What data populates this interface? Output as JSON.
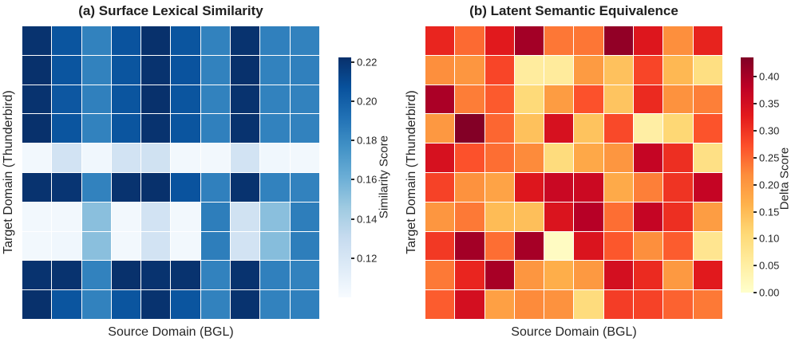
{
  "figure": {
    "background": "#ffffff",
    "title_color": "#1f1f1f",
    "label_color": "#262626",
    "grid_line_color": "#ffffff"
  },
  "chart_data": [
    {
      "type": "heatmap",
      "panel": "a",
      "title": "(a) Surface Lexical Similarity",
      "xlabel": "Source Domain (BGL)",
      "ylabel": "Target Domain (Thunderbird)",
      "colorbar_label": "Similarity Score",
      "colorbar_ticks": [
        0.22,
        0.2,
        0.18,
        0.16,
        0.14,
        0.12
      ],
      "vmin": 0.1,
      "vmax": 0.2224,
      "colormap": "Blues",
      "colormap_stops": [
        "#f7fbff",
        "#deebf7",
        "#c6dbef",
        "#9ecae1",
        "#6baed6",
        "#4292c6",
        "#2171b5",
        "#08519c",
        "#08306b"
      ],
      "rows": 10,
      "cols": 10,
      "x_tick_labels": [],
      "y_tick_labels": [],
      "values": [
        [
          0.221,
          0.205,
          0.184,
          0.206,
          0.222,
          0.205,
          0.184,
          0.221,
          0.185,
          0.184
        ],
        [
          0.222,
          0.205,
          0.184,
          0.205,
          0.221,
          0.206,
          0.184,
          0.222,
          0.184,
          0.185
        ],
        [
          0.221,
          0.204,
          0.185,
          0.205,
          0.222,
          0.205,
          0.184,
          0.221,
          0.184,
          0.184
        ],
        [
          0.222,
          0.205,
          0.184,
          0.205,
          0.221,
          0.205,
          0.185,
          0.221,
          0.184,
          0.184
        ],
        [
          0.103,
          0.123,
          0.104,
          0.123,
          0.124,
          0.103,
          0.103,
          0.123,
          0.104,
          0.103
        ],
        [
          0.221,
          0.22,
          0.184,
          0.221,
          0.222,
          0.206,
          0.185,
          0.221,
          0.184,
          0.184
        ],
        [
          0.103,
          0.103,
          0.152,
          0.103,
          0.123,
          0.103,
          0.186,
          0.124,
          0.152,
          0.186
        ],
        [
          0.103,
          0.104,
          0.152,
          0.103,
          0.123,
          0.103,
          0.186,
          0.123,
          0.153,
          0.186
        ],
        [
          0.221,
          0.221,
          0.184,
          0.222,
          0.221,
          0.221,
          0.184,
          0.221,
          0.185,
          0.184
        ],
        [
          0.222,
          0.205,
          0.184,
          0.205,
          0.221,
          0.205,
          0.184,
          0.221,
          0.184,
          0.185
        ]
      ]
    },
    {
      "type": "heatmap",
      "panel": "b",
      "title": "(b) Latent Semantic Equivalence",
      "xlabel": "Source Domain (BGL)",
      "ylabel": "Target Domain (Thunderbird)",
      "colorbar_label": "Delta Score",
      "colorbar_ticks": [
        0.4,
        0.35,
        0.3,
        0.25,
        0.2,
        0.15,
        0.1,
        0.05,
        0.0
      ],
      "vmin": 0.0,
      "vmax": 0.436,
      "colormap": "YlOrRd",
      "colormap_stops": [
        "#ffffcc",
        "#ffeda0",
        "#fed976",
        "#feb24c",
        "#fd8d3c",
        "#fc4e2a",
        "#e31a1c",
        "#bd0026",
        "#800026"
      ],
      "rows": 10,
      "cols": 10,
      "x_tick_labels": [],
      "y_tick_labels": [],
      "values": [
        [
          0.315,
          0.248,
          0.33,
          0.405,
          0.237,
          0.238,
          0.42,
          0.335,
          0.215,
          0.318
        ],
        [
          0.215,
          0.205,
          0.282,
          0.057,
          0.06,
          0.198,
          0.142,
          0.282,
          0.155,
          0.093
        ],
        [
          0.398,
          0.232,
          0.262,
          0.105,
          0.196,
          0.27,
          0.138,
          0.31,
          0.21,
          0.23
        ],
        [
          0.202,
          0.433,
          0.252,
          0.143,
          0.345,
          0.14,
          0.278,
          0.05,
          0.11,
          0.268
        ],
        [
          0.345,
          0.27,
          0.245,
          0.22,
          0.1,
          0.178,
          0.205,
          0.37,
          0.305,
          0.09
        ],
        [
          0.285,
          0.21,
          0.185,
          0.335,
          0.365,
          0.362,
          0.175,
          0.23,
          0.3,
          0.37
        ],
        [
          0.205,
          0.235,
          0.15,
          0.145,
          0.34,
          0.387,
          0.245,
          0.37,
          0.305,
          0.195
        ],
        [
          0.295,
          0.405,
          0.245,
          0.402,
          0.012,
          0.34,
          0.265,
          0.215,
          0.26,
          0.075
        ],
        [
          0.235,
          0.315,
          0.4,
          0.205,
          0.17,
          0.2,
          0.35,
          0.31,
          0.2,
          0.33
        ],
        [
          0.26,
          0.35,
          0.19,
          0.22,
          0.21,
          0.1,
          0.29,
          0.285,
          0.255,
          0.235
        ]
      ]
    }
  ]
}
